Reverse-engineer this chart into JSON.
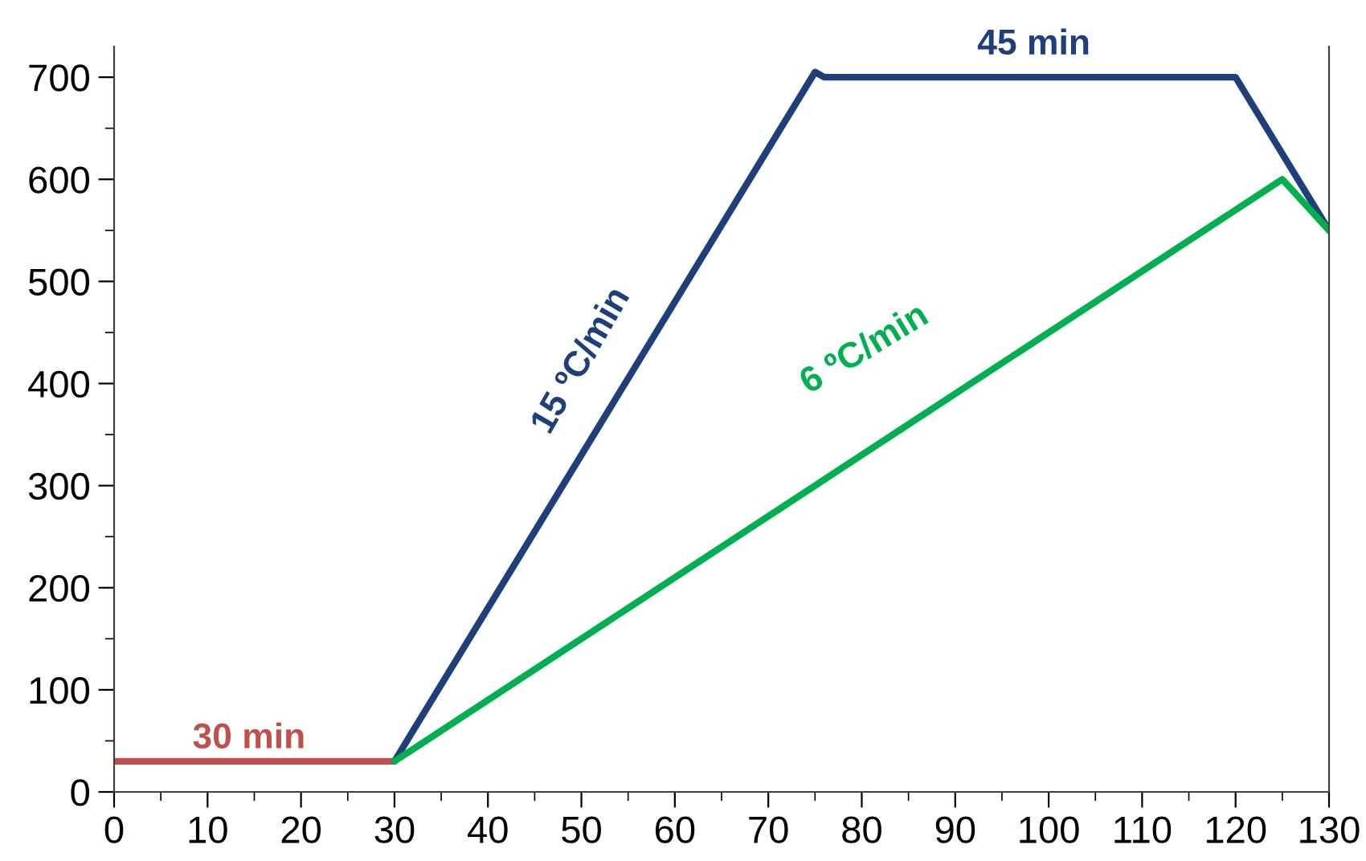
{
  "chart_data": {
    "type": "line",
    "series": [
      {
        "color": "#c0504d",
        "x": [
          0,
          30
        ],
        "values": [
          30,
          30
        ]
      },
      {
        "color": "#1f3f7a",
        "x": [
          30,
          75,
          76,
          120,
          130
        ],
        "values": [
          30,
          705,
          700,
          700,
          550
        ]
      },
      {
        "color": "#00b050",
        "x": [
          30,
          125,
          130
        ],
        "values": [
          30,
          600,
          550
        ]
      }
    ],
    "annotations": [
      "30 min",
      "15 ºC/min",
      "45 min",
      "6 ºC/min"
    ],
    "xlim": [
      0,
      130
    ],
    "ylim": [
      0,
      730
    ],
    "xticks": [
      0,
      {
        "value": 5,
        "label": null
      },
      10,
      {
        "value": 15,
        "label": null
      },
      20,
      {
        "value": 25,
        "label": null
      },
      30,
      {
        "value": 35,
        "label": null
      },
      40,
      {
        "value": 45,
        "label": null
      },
      50,
      {
        "value": 55,
        "label": null
      },
      60,
      {
        "value": 65,
        "label": null
      },
      70,
      {
        "value": 75,
        "label": null
      },
      80,
      {
        "value": 85,
        "label": null
      },
      90,
      {
        "value": 95,
        "label": null
      },
      100,
      {
        "value": 105,
        "label": null
      },
      110,
      {
        "value": 115,
        "label": null
      },
      120,
      {
        "value": 125,
        "label": null
      },
      130
    ],
    "yticks": [
      0,
      {
        "value": 50,
        "label": null
      },
      100,
      {
        "value": 150,
        "label": null
      },
      200,
      {
        "value": 250,
        "label": null
      },
      300,
      {
        "value": 350,
        "label": null
      },
      400,
      {
        "value": 450,
        "label": null
      },
      500,
      {
        "value": 550,
        "label": null
      },
      600,
      {
        "value": 650,
        "label": null
      },
      700
    ],
    "grid": false,
    "marker": "none",
    "line_style": "solid"
  }
}
